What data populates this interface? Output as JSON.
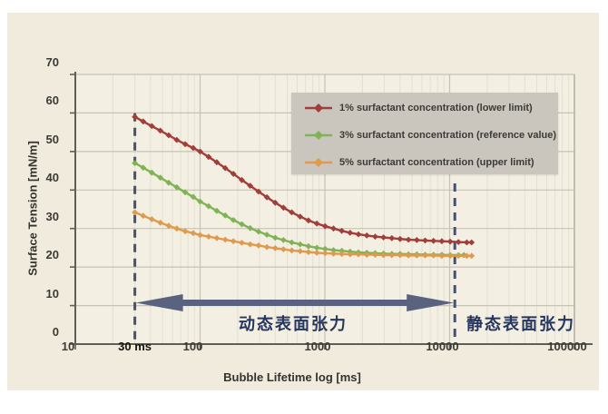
{
  "chart_data": {
    "type": "line",
    "title": "",
    "xlabel": "Bubble Lifetime log [ms]",
    "ylabel": "Surface Tension [mN/m]",
    "x_scale": "log",
    "xlim": [
      10,
      100000
    ],
    "ylim": [
      0,
      70
    ],
    "x_ticks": [
      10,
      100,
      1000,
      10000,
      100000
    ],
    "x_tick_labels": [
      "10",
      "100",
      "1000",
      "10000",
      "100000"
    ],
    "extra_x_tick": {
      "ms": 30,
      "label": "30 ms"
    },
    "y_ticks": [
      0,
      10,
      20,
      30,
      40,
      50,
      60,
      70
    ],
    "grid": true,
    "legend_position": "top-right",
    "series": [
      {
        "name": "1% surfactant concentration (lower limit)",
        "color": "#a23e3a",
        "points": [
          [
            30,
            59
          ],
          [
            35,
            57.8
          ],
          [
            41,
            56.6
          ],
          [
            48,
            55.4
          ],
          [
            56,
            54.2
          ],
          [
            65,
            53
          ],
          [
            76,
            51.9
          ],
          [
            88,
            50.9
          ],
          [
            100,
            50
          ],
          [
            117,
            48.6
          ],
          [
            136,
            47.2
          ],
          [
            159,
            45.7
          ],
          [
            185,
            44.2
          ],
          [
            216,
            42.6
          ],
          [
            252,
            41.1
          ],
          [
            294,
            39.6
          ],
          [
            343,
            38.1
          ],
          [
            400,
            36.7
          ],
          [
            466,
            35.4
          ],
          [
            543,
            34.2
          ],
          [
            634,
            33.1
          ],
          [
            739,
            32.1
          ],
          [
            862,
            31.3
          ],
          [
            1005,
            30.6
          ],
          [
            1172,
            30
          ],
          [
            1367,
            29.4
          ],
          [
            1594,
            28.9
          ],
          [
            1859,
            28.5
          ],
          [
            2168,
            28.2
          ],
          [
            2529,
            27.9
          ],
          [
            2949,
            27.7
          ],
          [
            3439,
            27.5
          ],
          [
            4011,
            27.3
          ],
          [
            4678,
            27.1
          ],
          [
            5456,
            27
          ],
          [
            6363,
            26.9
          ],
          [
            7421,
            26.8
          ],
          [
            8655,
            26.7
          ],
          [
            10094,
            26.6
          ],
          [
            11772,
            26.5
          ],
          [
            13730,
            26.4
          ],
          [
            15000,
            26.4
          ]
        ]
      },
      {
        "name": "3% surfactant concentration (reference value)",
        "color": "#7fb356",
        "points": [
          [
            30,
            47
          ],
          [
            35,
            45.8
          ],
          [
            41,
            44.5
          ],
          [
            48,
            43.2
          ],
          [
            56,
            41.9
          ],
          [
            65,
            40.7
          ],
          [
            76,
            39.4
          ],
          [
            88,
            38.2
          ],
          [
            100,
            37
          ],
          [
            117,
            35.8
          ],
          [
            136,
            34.6
          ],
          [
            159,
            33.4
          ],
          [
            185,
            32.2
          ],
          [
            216,
            31.1
          ],
          [
            252,
            30.1
          ],
          [
            294,
            29.2
          ],
          [
            343,
            28.4
          ],
          [
            400,
            27.6
          ],
          [
            466,
            27
          ],
          [
            543,
            26.4
          ],
          [
            634,
            25.9
          ],
          [
            739,
            25.4
          ],
          [
            862,
            25
          ],
          [
            1005,
            24.7
          ],
          [
            1172,
            24.4
          ],
          [
            1367,
            24.2
          ],
          [
            1594,
            24
          ],
          [
            1859,
            23.8
          ],
          [
            2168,
            23.7
          ],
          [
            2529,
            23.6
          ],
          [
            2949,
            23.5
          ],
          [
            3439,
            23.4
          ],
          [
            4011,
            23.4
          ],
          [
            4678,
            23.3
          ],
          [
            5456,
            23.3
          ],
          [
            6363,
            23.2
          ],
          [
            7421,
            23.2
          ],
          [
            8655,
            23.2
          ],
          [
            10094,
            23.1
          ],
          [
            11772,
            23.1
          ],
          [
            13000,
            23.1
          ]
        ]
      },
      {
        "name": "5% surfactant concentration (upper limit)",
        "color": "#e09a4d",
        "points": [
          [
            30,
            34.2
          ],
          [
            35,
            33.3
          ],
          [
            41,
            32.4
          ],
          [
            48,
            31.5
          ],
          [
            56,
            30.7
          ],
          [
            65,
            30
          ],
          [
            76,
            29.3
          ],
          [
            88,
            28.8
          ],
          [
            100,
            28.3
          ],
          [
            117,
            27.9
          ],
          [
            136,
            27.5
          ],
          [
            159,
            27.1
          ],
          [
            185,
            26.7
          ],
          [
            216,
            26.3
          ],
          [
            252,
            25.9
          ],
          [
            294,
            25.6
          ],
          [
            343,
            25.2
          ],
          [
            400,
            24.9
          ],
          [
            466,
            24.6
          ],
          [
            543,
            24.3
          ],
          [
            634,
            24.1
          ],
          [
            739,
            23.9
          ],
          [
            862,
            23.7
          ],
          [
            1005,
            23.6
          ],
          [
            1172,
            23.5
          ],
          [
            1367,
            23.4
          ],
          [
            1594,
            23.3
          ],
          [
            1859,
            23.3
          ],
          [
            2168,
            23.2
          ],
          [
            2529,
            23.2
          ],
          [
            2949,
            23.1
          ],
          [
            3439,
            23.1
          ],
          [
            4011,
            23.1
          ],
          [
            4678,
            23
          ],
          [
            5456,
            23
          ],
          [
            6363,
            23
          ],
          [
            7421,
            23
          ],
          [
            8655,
            22.9
          ],
          [
            10094,
            22.9
          ],
          [
            11772,
            22.9
          ],
          [
            13730,
            22.9
          ],
          [
            15000,
            22.9
          ]
        ]
      }
    ],
    "annotations": {
      "dashed_line_1_ms": 30,
      "dashed_line_2_ms": 11000,
      "arrow_between_lines": true,
      "dynamic_label": "动态表面张力",
      "static_label": "静态表面张力"
    },
    "colors": {
      "panel_background": "#f0ebdd",
      "plot_background": "#f3efe2",
      "legend_background": "#cac6be",
      "grid_major": "#c6c2b4",
      "grid_minor": "#e3dfd1",
      "axis": "#5f5f58",
      "dashed_line": "#465270",
      "arrow": "#596380",
      "annotation_text": "#26365e"
    }
  }
}
